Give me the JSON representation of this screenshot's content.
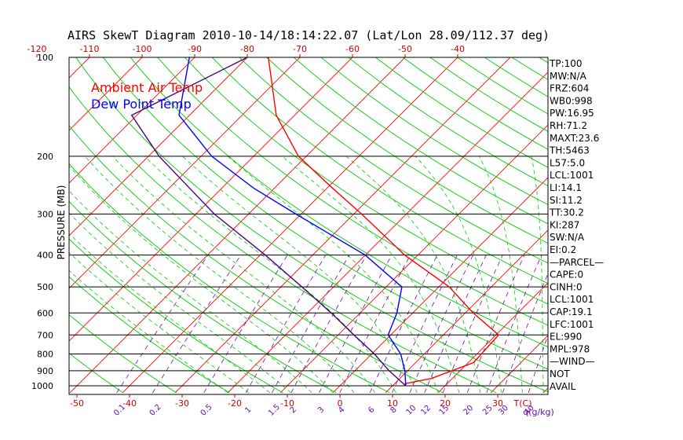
{
  "title": "AIRS SkewT Diagram 2010-10-14/18:14:22.07 (Lat/Lon 28.09/112.37 deg)",
  "chart_data": {
    "type": "line",
    "title": "AIRS SkewT Diagram 2010-10-14/18:14:22.07 (Lat/Lon 28.09/112.37 deg)",
    "ylabel": "PRESSURE (MB)",
    "xlabel": "T(C)",
    "mixing_ratio_label": "q(g/kg)",
    "pressure_ticks": [
      1000,
      900,
      800,
      700,
      600,
      500,
      400,
      300,
      200,
      100
    ],
    "bottom_temp_ticks": [
      -50,
      -40,
      -30,
      -20,
      -10,
      0,
      10,
      20,
      30
    ],
    "top_temp_ticks": [
      -120,
      -110,
      -100,
      -90,
      -80,
      -70,
      -60,
      -50,
      -40
    ],
    "mixing_ratio_ticks": [
      "0.1",
      "0.2",
      "0.5",
      "1",
      "1.5",
      "2",
      "3",
      "4",
      "6",
      "8",
      "10",
      "12",
      "15",
      "20",
      "25",
      "30",
      "40"
    ],
    "legend": [
      {
        "name": "Ambient Air Temp",
        "color": "#ff0000"
      },
      {
        "name": "Dew Point Temp",
        "color": "#0000ff"
      }
    ],
    "series": [
      {
        "name": "Ambient Air Temp",
        "color": "#ff0000",
        "points": [
          [
            1000,
            12.5
          ],
          [
            985,
            12.0
          ],
          [
            950,
            16.0
          ],
          [
            850,
            21.0
          ],
          [
            700,
            20.5
          ],
          [
            600,
            11.5
          ],
          [
            500,
            2.0
          ],
          [
            400,
            -12.5
          ],
          [
            300,
            -28.5
          ],
          [
            250,
            -39.0
          ],
          [
            200,
            -51.5
          ],
          [
            150,
            -63.5
          ],
          [
            100,
            -76.0
          ]
        ]
      },
      {
        "name": "Dew Point Temp",
        "color": "#0000ff",
        "points": [
          [
            1000,
            12.5
          ],
          [
            900,
            9.5
          ],
          [
            800,
            5.5
          ],
          [
            700,
            -0.5
          ],
          [
            600,
            -3.0
          ],
          [
            500,
            -7.0
          ],
          [
            400,
            -20.0
          ],
          [
            300,
            -41.0
          ],
          [
            250,
            -54.0
          ],
          [
            200,
            -68.0
          ],
          [
            150,
            -82.0
          ],
          [
            100,
            -91.0
          ]
        ]
      },
      {
        "name": "Parcel",
        "color": "#4b0082",
        "points": [
          [
            1000,
            12.5
          ],
          [
            900,
            6.5
          ],
          [
            800,
            0.5
          ],
          [
            700,
            -7.0
          ],
          [
            600,
            -15.5
          ],
          [
            500,
            -26.0
          ],
          [
            400,
            -39.0
          ],
          [
            300,
            -56.5
          ],
          [
            200,
            -78.0
          ],
          [
            150,
            -91.0
          ],
          [
            100,
            -80.0
          ]
        ]
      }
    ],
    "indices": [
      "TP:100",
      "MW:N/A",
      "FRZ:604",
      "WB0:998",
      "PW:16.95",
      "RH:71.2",
      "MAXT:23.6",
      "TH:5463",
      "L57:5.0",
      "LCL:1001",
      "LI:14.1",
      "SI:11.2",
      "TT:30.2",
      "KI:287",
      "SW:N/A",
      "EI:0.2",
      "—PARCEL—",
      "CAPE:0",
      "CINH:0",
      "LCL:1001",
      "CAP:19.1",
      "LFC:1001",
      "EL:990",
      "MPL:978",
      "—WIND—",
      "NOT",
      "AVAIL"
    ],
    "colors": {
      "isotherm": "#ff0000",
      "dry_adiabat": "#00cc00",
      "moist_adiabat": "#00cc00",
      "mixing_ratio": "#6a0dad",
      "isobar": "#000000",
      "axis_text": "#cc0000",
      "mixing_text": "#6a0dad"
    }
  }
}
